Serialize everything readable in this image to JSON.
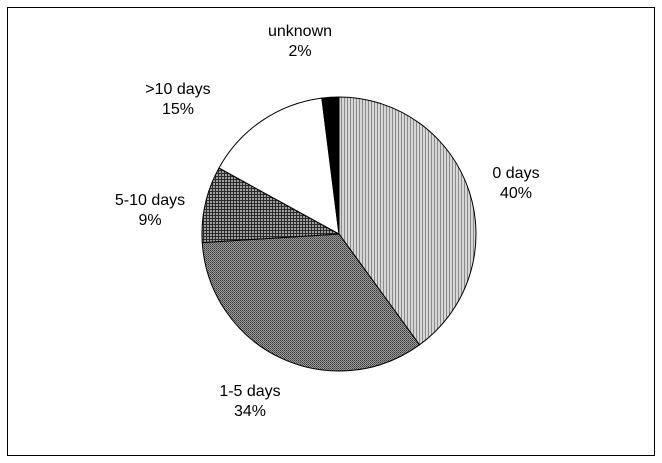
{
  "chart_data": {
    "type": "pie",
    "slices": [
      {
        "label": "0 days",
        "value": 40,
        "pct_label": "40%",
        "pattern": "vertical-lines"
      },
      {
        "label": "1-5 days",
        "value": 34,
        "pct_label": "34%",
        "pattern": "dense-dots"
      },
      {
        "label": "5-10 days",
        "value": 9,
        "pct_label": "9%",
        "pattern": "grid"
      },
      {
        "label": ">10 days",
        "value": 15,
        "pct_label": "15%",
        "pattern": "white"
      },
      {
        "label": "unknown",
        "value": 2,
        "pct_label": "2%",
        "pattern": "black"
      }
    ],
    "start_angle": "12 o'clock",
    "direction": "clockwise",
    "legend": "none",
    "colors": {
      "outline": "#000000",
      "background": "#ffffff"
    }
  }
}
